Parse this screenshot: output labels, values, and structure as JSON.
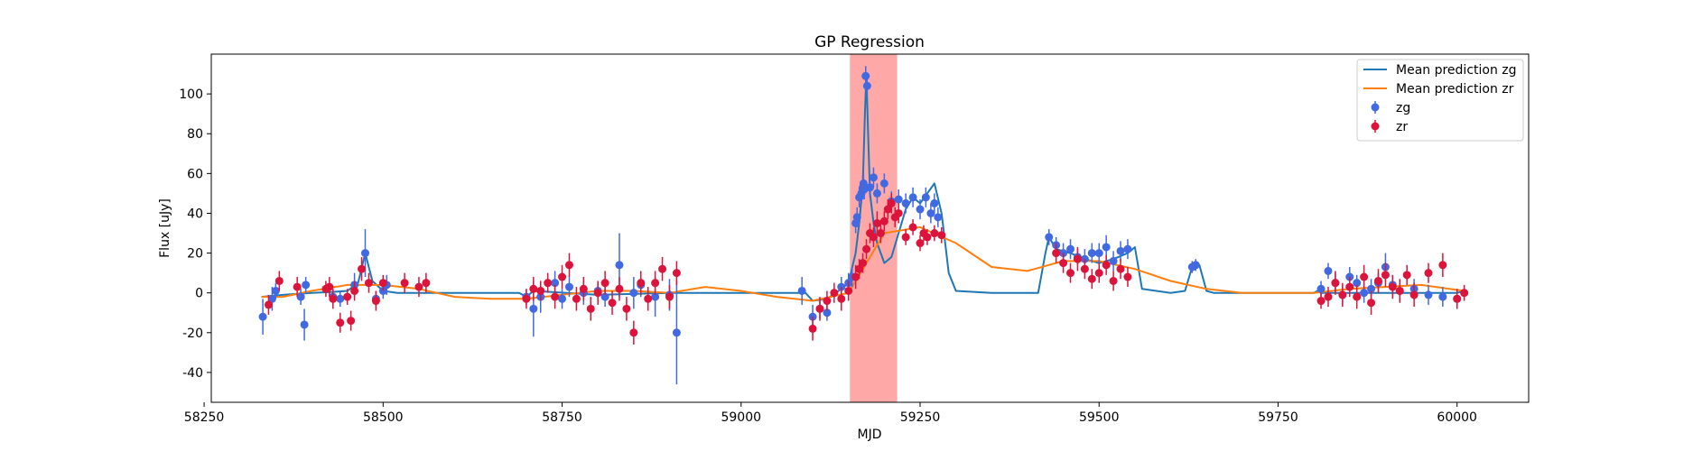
{
  "chart_data": {
    "type": "scatter",
    "title": "GP Regression",
    "xlabel": "MJD",
    "ylabel": "Flux [uJy]",
    "xlim": [
      58260,
      60100
    ],
    "ylim": [
      -55,
      120
    ],
    "xticks": [
      58250,
      58500,
      58750,
      59000,
      59250,
      59500,
      59750,
      60000
    ],
    "yticks": [
      -40,
      -20,
      0,
      20,
      40,
      60,
      80,
      100
    ],
    "grid": false,
    "legend_position": "top-right",
    "shaded_region": {
      "x_start": 59152,
      "x_end": 59218,
      "color": "#ff9999"
    },
    "series": [
      {
        "name": "Mean prediction zg",
        "kind": "line",
        "color": "#1f77b4",
        "x": [
          58330,
          58360,
          58400,
          58430,
          58450,
          58465,
          58475,
          58485,
          58500,
          58520,
          58560,
          58600,
          58650,
          58690,
          58700,
          58710,
          58800,
          58900,
          58950,
          59000,
          59050,
          59080,
          59090,
          59100,
          59120,
          59140,
          59150,
          59160,
          59165,
          59170,
          59173,
          59175,
          59177,
          59180,
          59185,
          59190,
          59200,
          59210,
          59220,
          59230,
          59240,
          59250,
          59260,
          59270,
          59280,
          59285,
          59290,
          59300,
          59350,
          59400,
          59415,
          59425,
          59430,
          59440,
          59460,
          59480,
          59500,
          59520,
          59540,
          59550,
          59560,
          59600,
          59620,
          59630,
          59640,
          59650,
          59660,
          59700,
          59750,
          59780,
          59790,
          59800,
          59805,
          59810,
          59900,
          59950,
          59980,
          60000,
          60010
        ],
        "y": [
          -2,
          -1,
          0,
          0.5,
          1,
          5,
          20,
          6,
          1,
          0,
          0,
          0,
          0,
          0,
          -2,
          1,
          -1,
          0,
          0,
          0,
          0,
          0,
          0,
          -4,
          -3,
          2,
          5,
          20,
          35,
          55,
          90,
          110,
          85,
          50,
          35,
          25,
          15,
          18,
          30,
          42,
          48,
          45,
          50,
          55,
          40,
          25,
          10,
          1,
          0,
          0,
          0,
          20,
          28,
          22,
          20,
          17,
          15,
          17,
          20,
          23,
          2,
          0,
          1,
          13,
          14,
          1,
          0,
          0,
          0,
          0,
          0,
          0,
          1,
          0,
          0,
          0,
          0,
          0,
          1
        ]
      },
      {
        "name": "Mean prediction zr",
        "kind": "line",
        "color": "#ff7f0e",
        "x": [
          58330,
          58360,
          58400,
          58450,
          58500,
          58550,
          58600,
          58650,
          58700,
          58750,
          58800,
          58850,
          58900,
          58950,
          59000,
          59050,
          59100,
          59150,
          59200,
          59250,
          59300,
          59350,
          59400,
          59450,
          59500,
          59550,
          59600,
          59650,
          59700,
          59750,
          59800,
          59850,
          59900,
          59950,
          60010
        ],
        "y": [
          -2,
          -2,
          1,
          4,
          4,
          2,
          -2,
          -3,
          -3,
          -1,
          1,
          1,
          0,
          3,
          1,
          -2,
          -4,
          0,
          30,
          33,
          25,
          13,
          11,
          16,
          16,
          12,
          6,
          2,
          0,
          0,
          0,
          2,
          3,
          4,
          1
        ]
      },
      {
        "name": "zg",
        "kind": "errorbar",
        "color": "#4169e1",
        "x": [
          58332,
          58345,
          58350,
          58385,
          58390,
          58392,
          58430,
          58440,
          58460,
          58475,
          58490,
          58500,
          58505,
          58700,
          58710,
          58720,
          58740,
          58750,
          58760,
          58780,
          58800,
          58810,
          58830,
          58850,
          58860,
          58880,
          58900,
          58910,
          59085,
          59100,
          59110,
          59120,
          59140,
          59150,
          59155,
          59160,
          59162,
          59165,
          59168,
          59170,
          59171,
          59172,
          59174,
          59176,
          59180,
          59185,
          59190,
          59200,
          59210,
          59220,
          59230,
          59240,
          59250,
          59258,
          59265,
          59270,
          59275,
          59430,
          59440,
          59450,
          59460,
          59470,
          59480,
          59490,
          59500,
          59510,
          59520,
          59530,
          59540,
          59630,
          59635,
          59810,
          59820,
          59830,
          59840,
          59850,
          59860,
          59870,
          59880,
          59890,
          59900,
          59910,
          59920,
          59940,
          59960,
          59980,
          60000
        ],
        "y": [
          -12,
          -3,
          1,
          -2,
          -16,
          4,
          -2,
          -3,
          4,
          20,
          -3,
          1,
          4,
          -2,
          -8,
          -2,
          5,
          -3,
          3,
          0,
          1,
          -2,
          14,
          0,
          4,
          -2,
          -1,
          -20,
          1,
          -12,
          -8,
          -10,
          3,
          5,
          8,
          35,
          38,
          48,
          50,
          53,
          55,
          52,
          109,
          104,
          53,
          58,
          50,
          55,
          46,
          47,
          45,
          48,
          42,
          48,
          40,
          45,
          38,
          28,
          24,
          20,
          22,
          18,
          17,
          20,
          20,
          23,
          16,
          21,
          22,
          13,
          14,
          2,
          11,
          5,
          -1,
          8,
          5,
          0,
          2,
          5,
          13,
          4,
          1,
          2,
          -1,
          -2,
          -3
        ],
        "err": [
          9,
          6,
          4,
          4,
          8,
          4,
          4,
          4,
          6,
          12,
          4,
          4,
          5,
          4,
          14,
          8,
          6,
          5,
          5,
          6,
          4,
          5,
          16,
          8,
          6,
          10,
          8,
          26,
          7,
          6,
          5,
          4,
          5,
          5,
          5,
          5,
          5,
          5,
          5,
          6,
          5,
          5,
          5,
          5,
          5,
          5,
          5,
          5,
          5,
          5,
          5,
          5,
          5,
          5,
          5,
          5,
          5,
          4,
          4,
          5,
          5,
          4,
          5,
          5,
          5,
          6,
          5,
          5,
          5,
          3,
          3,
          4,
          4,
          5,
          5,
          5,
          4,
          5,
          5,
          5,
          7,
          5,
          5,
          5,
          5,
          5,
          5
        ]
      },
      {
        "name": "zr",
        "kind": "errorbar",
        "color": "#dc143c",
        "x": [
          58340,
          58355,
          58380,
          58420,
          58425,
          58430,
          58440,
          58450,
          58455,
          58460,
          58470,
          58480,
          58490,
          58500,
          58530,
          58550,
          58560,
          58700,
          58710,
          58720,
          58730,
          58740,
          58750,
          58760,
          58770,
          58780,
          58790,
          58800,
          58810,
          58820,
          58830,
          58840,
          58850,
          58860,
          58870,
          58880,
          58890,
          58900,
          58910,
          59100,
          59110,
          59120,
          59130,
          59140,
          59150,
          59160,
          59165,
          59170,
          59175,
          59180,
          59185,
          59190,
          59195,
          59200,
          59205,
          59210,
          59215,
          59220,
          59230,
          59240,
          59250,
          59255,
          59260,
          59270,
          59280,
          59440,
          59450,
          59460,
          59470,
          59480,
          59490,
          59500,
          59510,
          59520,
          59530,
          59540,
          59810,
          59820,
          59830,
          59840,
          59850,
          59860,
          59870,
          59880,
          59890,
          59900,
          59910,
          59920,
          59930,
          59940,
          59960,
          59980,
          60000,
          60010
        ],
        "y": [
          -6,
          6,
          3,
          2,
          3,
          -3,
          -15,
          -2,
          -14,
          1,
          12,
          5,
          -4,
          5,
          5,
          3,
          5,
          -3,
          2,
          1,
          5,
          -2,
          8,
          14,
          -3,
          2,
          -8,
          0,
          5,
          -5,
          2,
          -8,
          -20,
          5,
          -3,
          5,
          12,
          -2,
          10,
          -18,
          -8,
          -4,
          0,
          -3,
          1,
          8,
          12,
          15,
          22,
          30,
          28,
          35,
          30,
          36,
          42,
          45,
          38,
          40,
          28,
          33,
          25,
          30,
          28,
          30,
          29,
          20,
          15,
          10,
          17,
          12,
          7,
          10,
          14,
          6,
          12,
          8,
          -4,
          -2,
          5,
          -1,
          3,
          -2,
          8,
          -5,
          6,
          9,
          3,
          1,
          9,
          -1,
          10,
          14,
          -3,
          0
        ],
        "err": [
          5,
          5,
          5,
          4,
          5,
          5,
          5,
          4,
          5,
          5,
          6,
          5,
          5,
          4,
          5,
          5,
          5,
          5,
          6,
          5,
          5,
          6,
          6,
          6,
          6,
          6,
          6,
          6,
          6,
          6,
          6,
          6,
          6,
          6,
          6,
          6,
          6,
          6,
          6,
          6,
          6,
          5,
          5,
          6,
          5,
          6,
          5,
          5,
          5,
          5,
          5,
          6,
          5,
          5,
          5,
          5,
          5,
          5,
          4,
          4,
          4,
          4,
          4,
          4,
          4,
          5,
          5,
          5,
          6,
          5,
          5,
          5,
          5,
          5,
          5,
          5,
          4,
          5,
          6,
          6,
          5,
          6,
          6,
          6,
          6,
          6,
          6,
          6,
          5,
          6,
          5,
          6,
          5,
          4
        ]
      }
    ]
  }
}
